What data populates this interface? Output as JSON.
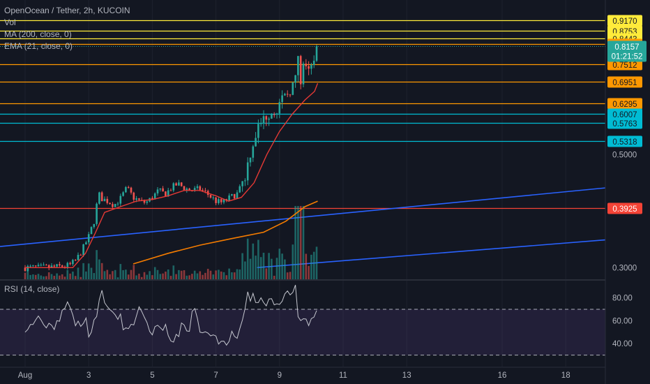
{
  "header": {
    "symbol_line": "OpenOcean / Tether, 2h, KUCOIN",
    "vol_label": "Vol",
    "ma_label": "MA (200, close, 0)",
    "ema_label": "EMA (21, close, 0)"
  },
  "rsi_panel": {
    "label": "RSI (14, close)"
  },
  "colors": {
    "background": "#131722",
    "up": "#26a69a",
    "down": "#ef5350",
    "ema": "#e53935",
    "ma": "#f57c00",
    "trend": "#2962ff",
    "rsi_line": "#c6c8d0",
    "rsi_band": "#7e57c2",
    "yellow_level": "#ffeb3b",
    "orange_level": "#ff9800",
    "cyan_level": "#00bcd4",
    "red_level": "#f44336"
  },
  "chart_data": [
    {
      "type": "candlestick",
      "title": "OpenOcean / Tether, 2h, KUCOIN",
      "x_ticks": [
        "Aug",
        "3",
        "5",
        "7",
        "9",
        "11",
        "13",
        "16",
        "18"
      ],
      "y_ticks": [
        "0.5000",
        "0.3000"
      ],
      "y_scale": "log",
      "ylim": [
        0.29,
        0.98
      ],
      "last_price": "0.8157",
      "countdown": "01:21:52",
      "horizontal_levels": [
        {
          "value": "0.9170",
          "style": "yellow"
        },
        {
          "value": "0.8753",
          "style": "yellow"
        },
        {
          "value": "0.8443",
          "style": "yellow"
        },
        {
          "value": "0.8236",
          "style": "orange"
        },
        {
          "value": "0.7512",
          "style": "orange"
        },
        {
          "value": "0.6951",
          "style": "orange"
        },
        {
          "value": "0.6295",
          "style": "orange"
        },
        {
          "value": "0.6007",
          "style": "cyan"
        },
        {
          "value": "0.5763",
          "style": "cyan"
        },
        {
          "value": "0.5318",
          "style": "cyan"
        },
        {
          "value": "0.3925",
          "style": "red"
        }
      ],
      "trendlines": [
        {
          "name": "rising trendline 1",
          "from": [
            0,
            0.33
          ],
          "to": [
            3.65,
            0.43
          ]
        },
        {
          "name": "rising trendline 2",
          "from": [
            1.55,
            0.3
          ],
          "to": [
            3.65,
            0.34
          ]
        }
      ],
      "price_path": [
        [
          0.0,
          0.3
        ],
        [
          0.5,
          0.3
        ],
        [
          1.0,
          0.301
        ],
        [
          1.4,
          0.303
        ],
        [
          1.6,
          0.31
        ],
        [
          1.8,
          0.325
        ],
        [
          2.0,
          0.345
        ],
        [
          2.2,
          0.375
        ],
        [
          2.3,
          0.42
        ],
        [
          2.4,
          0.41
        ],
        [
          2.6,
          0.405
        ],
        [
          2.8,
          0.398
        ],
        [
          3.0,
          0.41
        ],
        [
          3.2,
          0.43
        ],
        [
          3.4,
          0.412
        ],
        [
          3.6,
          0.405
        ],
        [
          3.8,
          0.402
        ],
        [
          4.0,
          0.412
        ],
        [
          4.2,
          0.425
        ],
        [
          4.4,
          0.418
        ],
        [
          4.6,
          0.43
        ],
        [
          4.8,
          0.438
        ],
        [
          5.0,
          0.43
        ],
        [
          5.2,
          0.425
        ],
        [
          5.5,
          0.428
        ],
        [
          5.7,
          0.42
        ],
        [
          5.9,
          0.41
        ],
        [
          6.0,
          0.405
        ],
        [
          6.2,
          0.402
        ],
        [
          6.4,
          0.41
        ],
        [
          6.7,
          0.42
        ],
        [
          6.9,
          0.45
        ],
        [
          7.1,
          0.51
        ],
        [
          7.3,
          0.56
        ],
        [
          7.6,
          0.6
        ],
        [
          7.8,
          0.61
        ],
        [
          8.0,
          0.625
        ],
        [
          8.2,
          0.65
        ],
        [
          8.5,
          0.7
        ],
        [
          8.6,
          0.78
        ],
        [
          8.65,
          0.7
        ],
        [
          8.75,
          0.74
        ],
        [
          8.9,
          0.72
        ],
        [
          9.1,
          0.76
        ],
        [
          9.2,
          0.8157
        ]
      ],
      "ema21": [
        [
          0.0,
          0.3
        ],
        [
          1.5,
          0.3
        ],
        [
          1.9,
          0.32
        ],
        [
          2.2,
          0.35
        ],
        [
          2.5,
          0.385
        ],
        [
          3.0,
          0.395
        ],
        [
          3.5,
          0.405
        ],
        [
          4.0,
          0.408
        ],
        [
          4.5,
          0.415
        ],
        [
          5.0,
          0.425
        ],
        [
          5.5,
          0.425
        ],
        [
          6.0,
          0.415
        ],
        [
          6.4,
          0.405
        ],
        [
          6.8,
          0.412
        ],
        [
          7.2,
          0.44
        ],
        [
          7.6,
          0.5
        ],
        [
          8.0,
          0.555
        ],
        [
          8.4,
          0.6
        ],
        [
          8.8,
          0.64
        ],
        [
          9.1,
          0.665
        ],
        [
          9.2,
          0.69
        ]
      ],
      "ma200": [
        [
          3.4,
          0.305
        ],
        [
          4.5,
          0.32
        ],
        [
          5.5,
          0.332
        ],
        [
          6.5,
          0.342
        ],
        [
          7.5,
          0.352
        ],
        [
          8.2,
          0.37
        ],
        [
          8.8,
          0.395
        ],
        [
          9.2,
          0.405
        ]
      ],
      "volume_note": "volume histogram at the bottom of the price pane, spikes during Aug 13-15"
    },
    {
      "type": "line",
      "title": "RSI (14, close)",
      "y_ticks": [
        "80.00",
        "60.00",
        "40.00"
      ],
      "ylim": [
        20,
        95
      ],
      "band": [
        30,
        70
      ],
      "values": [
        [
          0.0,
          54
        ],
        [
          0.2,
          58
        ],
        [
          0.4,
          62
        ],
        [
          0.6,
          60
        ],
        [
          0.8,
          52
        ],
        [
          1.0,
          58
        ],
        [
          1.2,
          70
        ],
        [
          1.4,
          76
        ],
        [
          1.5,
          62
        ],
        [
          1.7,
          55
        ],
        [
          1.9,
          62
        ],
        [
          2.0,
          48
        ],
        [
          2.1,
          52
        ],
        [
          2.3,
          70
        ],
        [
          2.4,
          86
        ],
        [
          2.5,
          78
        ],
        [
          2.6,
          70
        ],
        [
          2.7,
          74
        ],
        [
          2.8,
          62
        ],
        [
          3.0,
          65
        ],
        [
          3.1,
          50
        ],
        [
          3.3,
          56
        ],
        [
          3.4,
          55
        ],
        [
          3.6,
          75
        ],
        [
          3.75,
          65
        ],
        [
          3.9,
          52
        ],
        [
          4.0,
          48
        ],
        [
          4.1,
          56
        ],
        [
          4.3,
          50
        ],
        [
          4.4,
          58
        ],
        [
          4.5,
          50
        ],
        [
          4.6,
          44
        ],
        [
          4.8,
          46
        ],
        [
          4.9,
          54
        ],
        [
          5.0,
          60
        ],
        [
          5.1,
          48
        ],
        [
          5.2,
          58
        ],
        [
          5.3,
          72
        ],
        [
          5.4,
          66
        ],
        [
          5.5,
          52
        ],
        [
          5.6,
          46
        ],
        [
          5.7,
          54
        ],
        [
          5.8,
          48
        ],
        [
          5.9,
          44
        ],
        [
          6.0,
          46
        ],
        [
          6.1,
          40
        ],
        [
          6.2,
          44
        ],
        [
          6.4,
          40
        ],
        [
          6.5,
          50
        ],
        [
          6.6,
          42
        ],
        [
          6.7,
          44
        ],
        [
          6.8,
          56
        ],
        [
          6.9,
          70
        ],
        [
          7.0,
          82
        ],
        [
          7.1,
          76
        ],
        [
          7.2,
          84
        ],
        [
          7.3,
          68
        ],
        [
          7.4,
          80
        ],
        [
          7.5,
          78
        ],
        [
          7.6,
          72
        ],
        [
          7.7,
          78
        ],
        [
          7.8,
          74
        ],
        [
          7.9,
          78
        ],
        [
          8.0,
          72
        ],
        [
          8.1,
          82
        ],
        [
          8.2,
          86
        ],
        [
          8.3,
          80
        ],
        [
          8.45,
          86
        ],
        [
          8.55,
          90
        ],
        [
          8.6,
          50
        ],
        [
          8.7,
          62
        ],
        [
          8.8,
          58
        ],
        [
          8.95,
          60
        ],
        [
          9.1,
          64
        ],
        [
          9.2,
          70
        ]
      ]
    }
  ]
}
